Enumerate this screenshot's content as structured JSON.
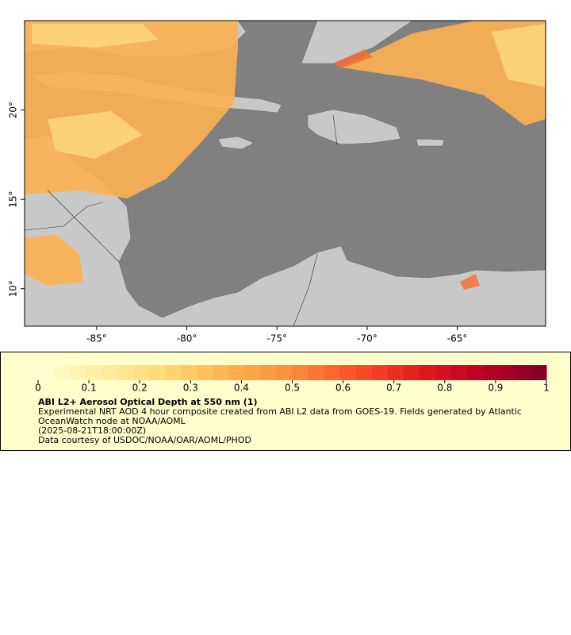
{
  "chart_data": {
    "type": "map",
    "xlim": [
      -89.0,
      -60.1
    ],
    "ylim": [
      7.9,
      25.0
    ],
    "xticks": [
      {
        "value": -85,
        "label": "-85°"
      },
      {
        "value": -80,
        "label": "-80°"
      },
      {
        "value": -75,
        "label": "-75°"
      },
      {
        "value": -70,
        "label": "-70°"
      },
      {
        "value": -65,
        "label": "-65°"
      }
    ],
    "yticks": [
      {
        "value": 10,
        "label": "10°"
      },
      {
        "value": 15,
        "label": "15°"
      },
      {
        "value": 20,
        "label": "20°"
      }
    ],
    "colorbar": {
      "lim": [
        0,
        1
      ],
      "ticks": [
        0,
        0.1,
        0.2,
        0.3,
        0.4,
        0.5,
        0.6,
        0.7,
        0.8,
        0.9,
        1
      ],
      "colormap": [
        "#ffffd4",
        "#ffeda0",
        "#fed976",
        "#feb24c",
        "#fd8d3c",
        "#fc4e2a",
        "#e31a1c",
        "#bd0026",
        "#800026"
      ]
    },
    "legend": {
      "title": "ABI L2+ Aerosol Optical Depth at 550 nm (1)",
      "description": "Experimental NRT AOD 4 hour composite created from ABI L2 data from GOES-19. Fields generated by Atlantic OceanWatch node at NOAA/AOML",
      "time": "(2025-08-21T18:00:00Z)",
      "credit": "Data courtesy of USDOC/NOAA/OAR/AOML/PHOD"
    }
  }
}
